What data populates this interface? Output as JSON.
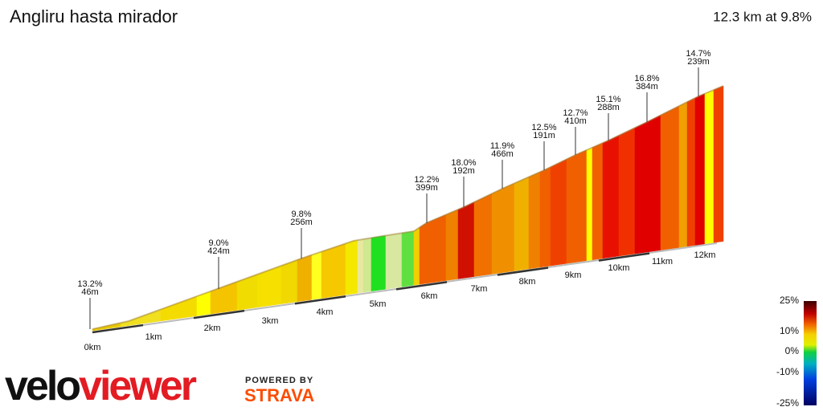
{
  "header": {
    "title": "Angliru hasta mirador",
    "summary": "12.3 km at 9.8%"
  },
  "annotations": [
    {
      "gradient": "13.2%",
      "length": "46m"
    },
    {
      "gradient": "9.0%",
      "length": "424m"
    },
    {
      "gradient": "9.8%",
      "length": "256m"
    },
    {
      "gradient": "12.2%",
      "length": "399m"
    },
    {
      "gradient": "18.0%",
      "length": "192m"
    },
    {
      "gradient": "11.9%",
      "length": "466m"
    },
    {
      "gradient": "12.5%",
      "length": "191m"
    },
    {
      "gradient": "12.7%",
      "length": "410m"
    },
    {
      "gradient": "15.1%",
      "length": "288m"
    },
    {
      "gradient": "16.8%",
      "length": "384m"
    },
    {
      "gradient": "14.7%",
      "length": "239m"
    }
  ],
  "distance_labels": [
    "0km",
    "1km",
    "2km",
    "3km",
    "4km",
    "5km",
    "6km",
    "7km",
    "8km",
    "9km",
    "10km",
    "11km",
    "12km"
  ],
  "gradient_scale": [
    "25%",
    "10%",
    "0%",
    "-10%",
    "-25%"
  ],
  "branding": {
    "logo_part1": "velo",
    "logo_part2": "viewer",
    "powered_by": "POWERED BY",
    "partner": "STRAVA"
  }
}
